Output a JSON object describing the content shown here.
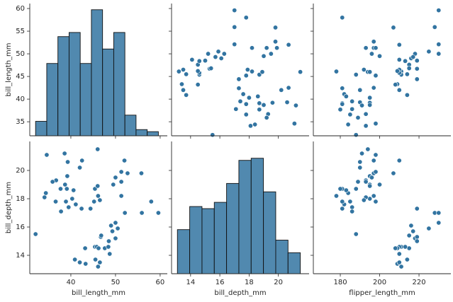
{
  "chart_data": [
    {
      "type": "histogram",
      "bins": [
        32.1,
        34.6,
        37.1,
        39.6,
        42.1,
        44.6,
        47.1,
        49.6,
        52.1,
        54.6,
        57.1,
        59.6
      ],
      "values": [
        7,
        35,
        48,
        50,
        35,
        61,
        42,
        50,
        10,
        3,
        2
      ],
      "color": "#3274a1",
      "y2lim": [
        0,
        64
      ],
      "xlim": [
        30.8,
        61.6
      ],
      "xticks": [
        40,
        50,
        60
      ],
      "ylim": [
        31.9,
        61.1
      ],
      "yticks": [
        35,
        40,
        45,
        50,
        55,
        60
      ],
      "ylabel": "bill_length_mm"
    },
    {
      "type": "scatter",
      "color": "#3274a1",
      "xlim": [
        12.7,
        22.1
      ],
      "xticks": [
        14,
        16,
        18,
        20
      ],
      "ylim": [
        31.9,
        61.1
      ],
      "yticks": [
        35,
        40,
        45,
        50,
        55,
        60
      ],
      "x": [
        18.7,
        17.4,
        18.0,
        19.3,
        20.6,
        17.8,
        19.6,
        18.1,
        20.2,
        17.1,
        17.6,
        21.2,
        21.1,
        17.8,
        19.0,
        20.7,
        18.4,
        21.5,
        18.7,
        19.2,
        15.5,
        18.6,
        17.9,
        19.5,
        19.2,
        18.7,
        19.8,
        17.8,
        18.2,
        18.2,
        18.9,
        19.9,
        17.8,
        19.0,
        20.7,
        19.8,
        17.3,
        13.2,
        16.3,
        14.1,
        15.2,
        14.5,
        13.5,
        14.6,
        15.3,
        13.4,
        15.4,
        13.7,
        16.1,
        13.7,
        14.6,
        14.6,
        15.7,
        13.5,
        14.5,
        17.0,
        17.0,
        17.3,
        15.0,
        17.0,
        15.9,
        14.5
      ],
      "y": [
        39.1,
        39.5,
        40.3,
        36.7,
        39.3,
        38.9,
        39.2,
        34.1,
        42.0,
        37.8,
        41.1,
        38.6,
        34.6,
        36.6,
        38.7,
        42.5,
        34.4,
        46.0,
        37.7,
        35.9,
        32.1,
        40.6,
        46.5,
        50.0,
        51.3,
        45.4,
        52.7,
        45.2,
        46.1,
        51.3,
        46.0,
        51.3,
        58.0,
        49.5,
        52.0,
        55.8,
        42.4,
        46.1,
        50.0,
        48.7,
        50.0,
        47.6,
        46.5,
        45.4,
        46.7,
        43.3,
        46.8,
        40.9,
        49.0,
        45.5,
        48.4,
        45.8,
        49.3,
        42.0,
        46.2,
        59.6,
        55.9,
        44.4,
        48.5,
        52.1,
        50.5,
        43.2
      ]
    },
    {
      "type": "scatter",
      "color": "#3274a1",
      "xlim": [
        166.3,
        236.2
      ],
      "xticks": [
        180,
        200,
        220
      ],
      "ylim": [
        31.9,
        61.1
      ],
      "yticks": [
        35,
        40,
        45,
        50,
        55,
        60
      ],
      "x": [
        181,
        186,
        195,
        193,
        190,
        181,
        195,
        193,
        190,
        186,
        182,
        191,
        198,
        185,
        195,
        197,
        184,
        194,
        180,
        189,
        188,
        183,
        192,
        196,
        193,
        188,
        197,
        198,
        178,
        197,
        195,
        198,
        181,
        200,
        210,
        207,
        181,
        211,
        230,
        210,
        218,
        215,
        210,
        211,
        219,
        209,
        215,
        214,
        216,
        214,
        213,
        210,
        217,
        210,
        209,
        230,
        228,
        219,
        219,
        230,
        225,
        208
      ],
      "y": [
        39.1,
        39.5,
        40.3,
        36.7,
        39.3,
        38.9,
        39.2,
        34.1,
        42.0,
        37.8,
        41.1,
        38.6,
        34.6,
        36.6,
        38.7,
        42.5,
        34.4,
        46.0,
        37.7,
        35.9,
        32.1,
        40.6,
        46.5,
        50.0,
        51.3,
        45.4,
        52.7,
        45.2,
        46.1,
        51.3,
        46.0,
        51.3,
        58.0,
        49.5,
        52.0,
        55.8,
        42.4,
        46.1,
        50.0,
        48.7,
        50.0,
        47.6,
        46.5,
        45.4,
        46.7,
        43.3,
        46.8,
        40.9,
        49.0,
        45.5,
        48.4,
        45.8,
        49.3,
        42.0,
        46.2,
        59.6,
        55.9,
        44.4,
        48.5,
        52.1,
        50.5,
        43.2
      ]
    },
    {
      "type": "scatter",
      "color": "#3274a1",
      "xlim": [
        30.8,
        61.6
      ],
      "xticks": [
        40,
        50,
        60
      ],
      "xlabel": "bill_length_mm",
      "ylim": [
        12.7,
        22.05
      ],
      "yticks": [
        14,
        16,
        18,
        20
      ],
      "ylabel": "bill_depth_mm",
      "x": [
        39.1,
        39.5,
        40.3,
        36.7,
        39.3,
        38.9,
        39.2,
        34.1,
        42.0,
        37.8,
        41.1,
        38.6,
        34.6,
        36.6,
        38.7,
        42.5,
        34.4,
        46.0,
        37.7,
        35.9,
        32.1,
        40.6,
        46.5,
        50.0,
        51.3,
        45.4,
        52.7,
        45.2,
        46.1,
        51.3,
        46.0,
        51.3,
        58.0,
        49.5,
        52.0,
        55.8,
        42.4,
        46.1,
        50.0,
        48.7,
        50.0,
        47.6,
        46.5,
        45.4,
        46.7,
        43.3,
        46.8,
        40.9,
        49.0,
        45.5,
        48.4,
        45.8,
        49.3,
        42.0,
        46.2,
        59.6,
        55.9,
        44.4,
        48.5,
        52.1,
        50.5,
        43.2
      ],
      "y": [
        18.7,
        17.4,
        18.0,
        19.3,
        20.6,
        17.8,
        19.6,
        18.1,
        20.2,
        17.1,
        17.6,
        21.2,
        21.1,
        17.8,
        19.0,
        20.7,
        18.4,
        21.5,
        18.7,
        19.2,
        15.5,
        18.6,
        17.9,
        19.5,
        19.2,
        18.7,
        19.8,
        17.8,
        18.2,
        18.2,
        18.9,
        19.9,
        17.8,
        19.0,
        20.7,
        19.8,
        17.3,
        13.2,
        16.3,
        14.1,
        15.2,
        14.5,
        13.5,
        14.6,
        15.3,
        13.4,
        15.4,
        13.7,
        16.1,
        13.7,
        14.6,
        14.6,
        15.7,
        13.5,
        14.5,
        17.0,
        17.0,
        17.3,
        15.0,
        17.0,
        15.9,
        14.5
      ]
    },
    {
      "type": "histogram",
      "bins": [
        13.1,
        13.94,
        14.78,
        15.62,
        16.46,
        17.3,
        18.14,
        18.98,
        19.82,
        20.66,
        21.5
      ],
      "values": [
        21,
        32,
        31,
        34,
        43,
        54,
        55,
        39,
        16,
        10
      ],
      "color": "#3274a1",
      "y2lim": [
        0,
        63
      ],
      "xlim": [
        12.7,
        22.1
      ],
      "xticks": [
        14,
        16,
        18,
        20
      ],
      "xlabel": "bill_depth_mm",
      "ylim": [
        12.7,
        22.05
      ],
      "yticks": [
        14,
        16,
        18,
        20
      ]
    },
    {
      "type": "scatter",
      "color": "#3274a1",
      "xlim": [
        166.3,
        236.2
      ],
      "xticks": [
        180,
        200,
        220
      ],
      "xlabel": "flipper_length_mm",
      "ylim": [
        12.7,
        22.05
      ],
      "yticks": [
        14,
        16,
        18,
        20
      ],
      "x": [
        181,
        186,
        195,
        193,
        190,
        181,
        195,
        193,
        190,
        186,
        182,
        191,
        198,
        185,
        195,
        197,
        184,
        194,
        180,
        189,
        188,
        183,
        192,
        196,
        193,
        188,
        197,
        198,
        178,
        197,
        195,
        198,
        181,
        200,
        210,
        207,
        181,
        211,
        230,
        210,
        218,
        215,
        210,
        211,
        219,
        209,
        215,
        214,
        216,
        214,
        213,
        210,
        217,
        210,
        209,
        230,
        228,
        219,
        219,
        230,
        225,
        208
      ],
      "y": [
        18.7,
        17.4,
        18.0,
        19.3,
        20.6,
        17.8,
        19.6,
        18.1,
        20.2,
        17.1,
        17.6,
        21.2,
        21.1,
        17.8,
        19.0,
        20.7,
        18.4,
        21.5,
        18.7,
        19.2,
        15.5,
        18.6,
        17.9,
        19.5,
        19.2,
        18.7,
        19.8,
        17.8,
        18.2,
        18.2,
        18.9,
        19.9,
        17.8,
        19.0,
        20.7,
        19.8,
        17.3,
        13.2,
        16.3,
        14.1,
        15.2,
        14.5,
        13.5,
        14.6,
        15.3,
        13.4,
        15.4,
        13.7,
        16.1,
        13.7,
        14.6,
        14.6,
        15.7,
        13.5,
        14.5,
        17.0,
        17.0,
        17.3,
        15.0,
        17.0,
        15.9,
        14.5
      ]
    }
  ]
}
